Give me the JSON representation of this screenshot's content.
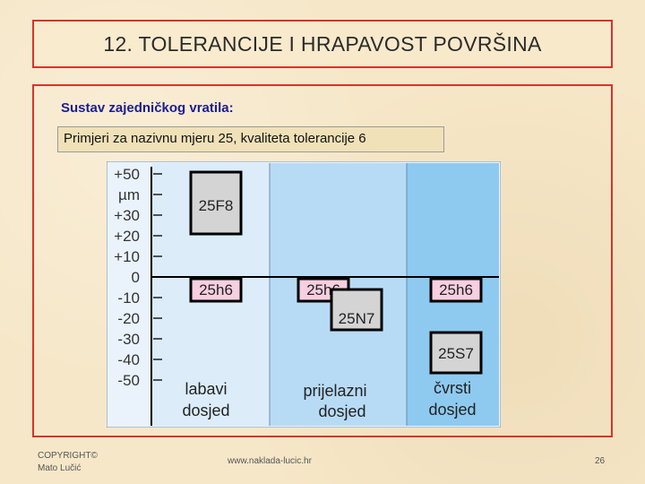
{
  "slide": {
    "title": "12. TOLERANCIJE I HRAPAVOST POVRŠINA",
    "subtitle": "Sustav zajedničkog vratila:",
    "example": "Primjeri za nazivnu mjeru 25, kvaliteta tolerancije 6"
  },
  "diagram": {
    "unit_label": "µm",
    "y_ticks": [
      "+50",
      "+30",
      "+20",
      "+10",
      "0",
      "-10",
      "-20",
      "-30",
      "-40",
      "-50"
    ],
    "columns": [
      {
        "line1": "labavi",
        "line2": "dosjed"
      },
      {
        "line1": "prijelazni",
        "line2": "dosjed"
      },
      {
        "line1": "čvrsti",
        "line2": "dosjed"
      }
    ],
    "boxes": {
      "f8": "25F8",
      "h6_a": "25h6",
      "h6_b": "25h6",
      "n7": "25N7",
      "h6_c": "25h6",
      "s7": "25S7"
    },
    "colors": {
      "col1": "#dcecf9",
      "col2": "#b8dbf5",
      "col3": "#8ecaf0",
      "hole_box": "#d4d4d4",
      "shaft_box": "#f6cfe0"
    }
  },
  "footer": {
    "copyright_line1": "COPYRIGHT©",
    "copyright_line2": "Mato Lučić",
    "url": "www.naklada-lucic.hr",
    "page": "26"
  }
}
